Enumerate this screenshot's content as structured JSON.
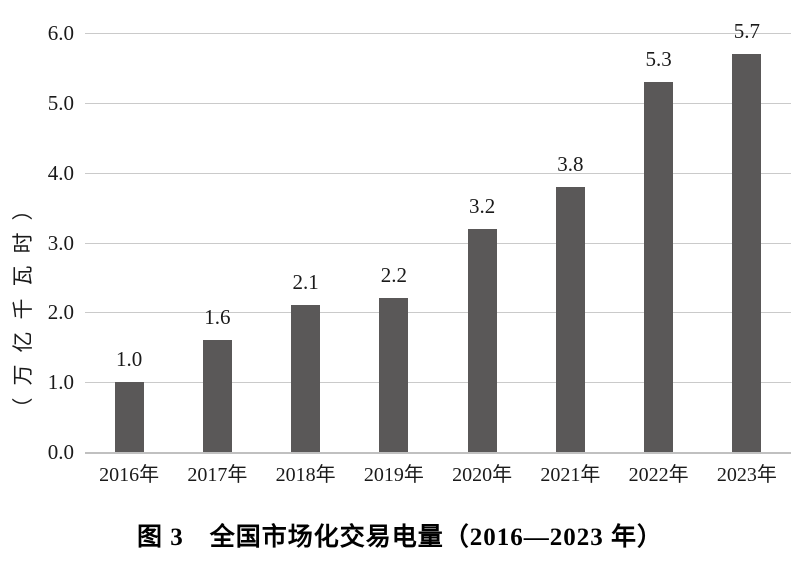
{
  "caption": "图 3　全国市场化交易电量（2016—2023 年）",
  "chart_data": {
    "type": "bar",
    "title": "图 3 全国市场化交易电量（2016—2023 年）",
    "categories": [
      "2016年",
      "2017年",
      "2018年",
      "2019年",
      "2020年",
      "2021年",
      "2022年",
      "2023年"
    ],
    "values": [
      1.0,
      1.6,
      2.1,
      2.2,
      3.2,
      3.8,
      5.3,
      5.7
    ],
    "data_labels": [
      "1.0",
      "1.6",
      "2.1",
      "2.2",
      "3.2",
      "3.8",
      "5.3",
      "5.7"
    ],
    "xlabel": "",
    "ylabel": "（万亿千瓦时）",
    "ylim": [
      0,
      6
    ],
    "yticks": [
      "0.0",
      "1.0",
      "2.0",
      "3.0",
      "4.0",
      "5.0",
      "6.0"
    ],
    "grid": true,
    "legend": false,
    "bar_color": "#5a5858",
    "gridline_color": "#cacaca",
    "axis_line_color": "#c0c0c0",
    "text_color": "#1a1a1a"
  }
}
